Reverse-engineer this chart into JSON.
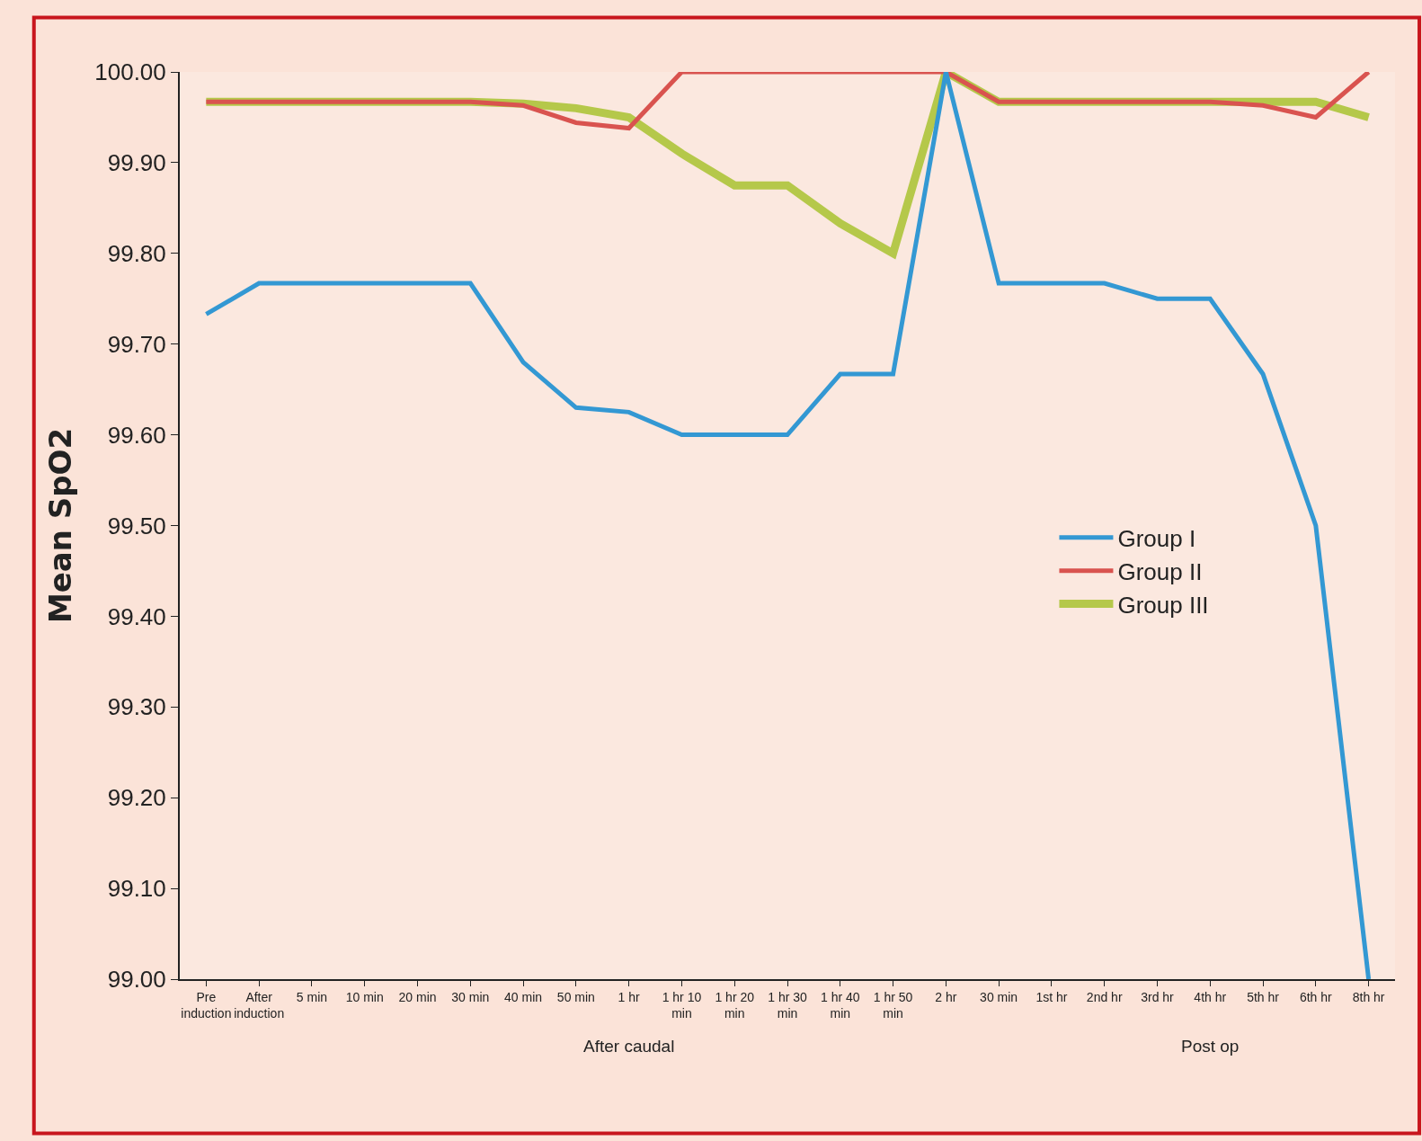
{
  "chart_data": {
    "type": "line",
    "ylabel": "Mean SpO2",
    "categories": [
      "Pre induction",
      "After induction",
      "5 min",
      "10 min",
      "20 min",
      "30 min",
      "40 min",
      "50 min",
      "1 hr",
      "1 hr 10 min",
      "1 hr 20 min",
      "1 hr 30 min",
      "1 hr 40 min",
      "1 hr 50 min",
      "2 hr",
      "30 min",
      "1st hr",
      "2nd hr",
      "3rd hr",
      "4th hr",
      "5th hr",
      "6th hr",
      "8th hr"
    ],
    "series": [
      {
        "name": "Group I",
        "color": "#3398d3",
        "values": [
          99.733,
          99.767,
          99.767,
          99.767,
          99.767,
          99.767,
          99.68,
          99.63,
          99.625,
          99.6,
          99.6,
          99.6,
          99.667,
          99.667,
          100.0,
          99.767,
          99.767,
          99.767,
          99.75,
          99.75,
          99.667,
          99.5,
          99.0
        ]
      },
      {
        "name": "Group II",
        "color": "#d9534f",
        "values": [
          99.967,
          99.967,
          99.967,
          99.967,
          99.967,
          99.967,
          99.963,
          99.944,
          99.938,
          100.0,
          100.0,
          100.0,
          100.0,
          100.0,
          100.0,
          99.967,
          99.967,
          99.967,
          99.967,
          99.967,
          99.963,
          99.95,
          100.0
        ]
      },
      {
        "name": "Group III",
        "color": "#b5c84a",
        "values": [
          99.967,
          99.967,
          99.967,
          99.967,
          99.967,
          99.967,
          99.965,
          99.96,
          99.95,
          99.91,
          99.875,
          99.875,
          99.833,
          99.8,
          100.0,
          99.967,
          99.967,
          99.967,
          99.967,
          99.967,
          99.967,
          99.967,
          99.95
        ]
      }
    ],
    "ylim": [
      99.0,
      100.0
    ],
    "yticks": [
      {
        "value": 99.0,
        "label": "99.00"
      },
      {
        "value": 99.1,
        "label": "99.10"
      },
      {
        "value": 99.2,
        "label": "99.20"
      },
      {
        "value": 99.3,
        "label": "99.30"
      },
      {
        "value": 99.4,
        "label": "99.40"
      },
      {
        "value": 99.5,
        "label": "99.50"
      },
      {
        "value": 99.6,
        "label": "99.60"
      },
      {
        "value": 99.7,
        "label": "99.70"
      },
      {
        "value": 99.8,
        "label": "99.80"
      },
      {
        "value": 99.9,
        "label": "99.90"
      },
      {
        "value": 100.0,
        "label": "100.00"
      }
    ],
    "annotations": [
      "After caudal",
      "Post op"
    ],
    "legend": "right",
    "grid": false,
    "marker": "none",
    "line_style": "solid"
  }
}
